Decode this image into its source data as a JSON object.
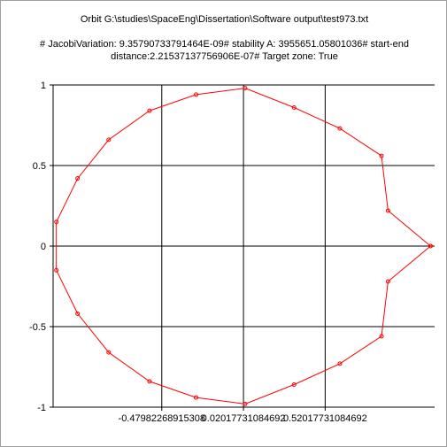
{
  "chart_data": {
    "type": "line",
    "title": "Orbit G:\\studies\\SpaceEng\\Dissertation\\Software output\\test973.txt",
    "subtitle_line1": "# JacobiVariation: 9.35790733791464E-09# stability A: 3955651.05801036# start-end",
    "subtitle_line2": "distance:2.21537137756906E-07# Target zone: True",
    "xlabel": "",
    "ylabel": "",
    "xlim": [
      -1.145,
      1.19
    ],
    "ylim": [
      -1.0,
      1.0
    ],
    "x_ticks": [
      -0.47982268915308,
      0.02017731084692,
      0.52017731084692
    ],
    "x_tick_labels": [
      "-0.47982268915308",
      "0.02017731084692",
      "0.52017731084692"
    ],
    "y_ticks": [
      1,
      0.5,
      0,
      -0.5,
      -1
    ],
    "y_tick_labels": [
      "1",
      "0.5",
      "0",
      "-0.5",
      "-1"
    ],
    "grid": true,
    "line_color": "#ff0000",
    "series": [
      {
        "values_xy": [
          [
            1.165,
            0.0
          ],
          [
            0.905,
            0.22
          ],
          [
            0.865,
            0.56
          ],
          [
            0.61,
            0.73
          ],
          [
            0.33,
            0.86
          ],
          [
            0.03,
            0.98
          ],
          [
            -0.27,
            0.94
          ],
          [
            -0.555,
            0.84
          ],
          [
            -0.805,
            0.66
          ],
          [
            -0.995,
            0.42
          ],
          [
            -1.125,
            0.15
          ],
          [
            -1.125,
            -0.15
          ],
          [
            -0.995,
            -0.42
          ],
          [
            -0.805,
            -0.66
          ],
          [
            -0.555,
            -0.84
          ],
          [
            -0.27,
            -0.94
          ],
          [
            0.03,
            -0.98
          ],
          [
            0.33,
            -0.86
          ],
          [
            0.61,
            -0.73
          ],
          [
            0.865,
            -0.56
          ],
          [
            0.905,
            -0.22
          ],
          [
            1.165,
            0.0
          ]
        ]
      }
    ]
  }
}
